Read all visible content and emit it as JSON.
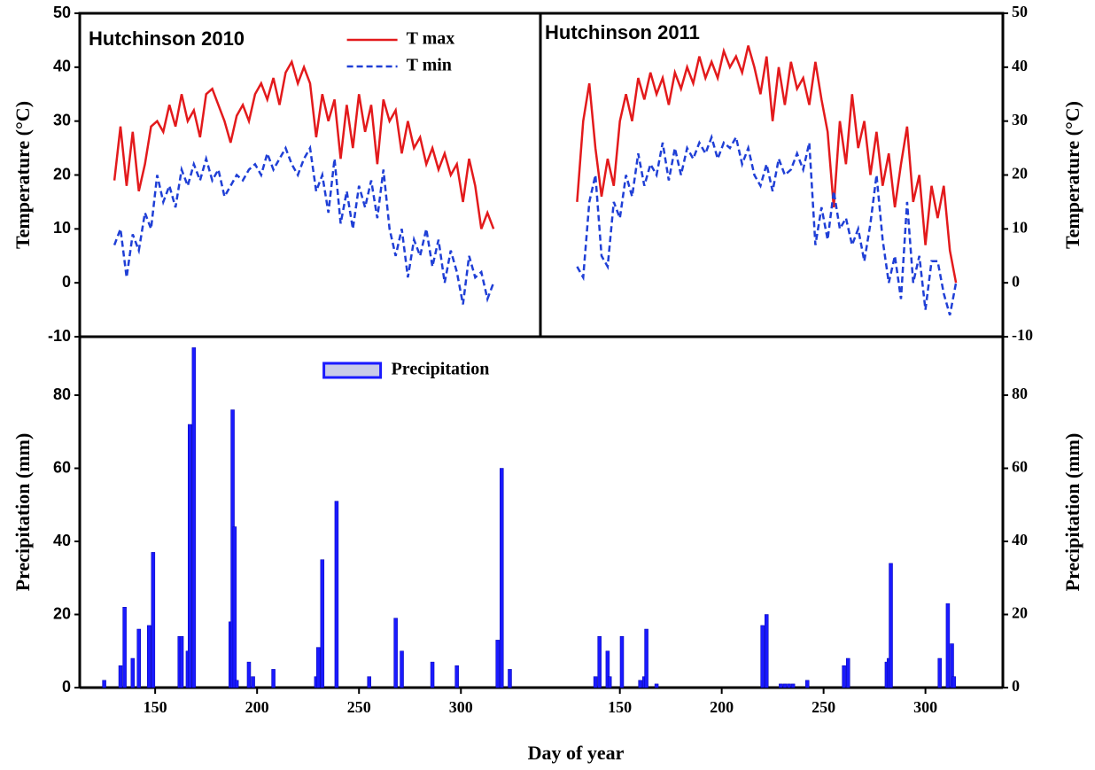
{
  "chart_data": [
    {
      "type": "line",
      "title": "Hutchinson 2010",
      "ylabel": "Temperature (°C)",
      "y_axis_side": "left",
      "xlim": [
        113,
        339
      ],
      "ylim": [
        -10,
        50
      ],
      "yticks": [
        -10,
        0,
        10,
        20,
        30,
        40,
        50
      ],
      "legend": "upper center",
      "x": [
        130,
        133,
        136,
        139,
        142,
        145,
        148,
        151,
        154,
        157,
        160,
        163,
        166,
        169,
        172,
        175,
        178,
        181,
        184,
        187,
        190,
        193,
        196,
        199,
        202,
        205,
        208,
        211,
        214,
        217,
        220,
        223,
        226,
        229,
        232,
        235,
        238,
        241,
        244,
        247,
        250,
        253,
        256,
        259,
        262,
        265,
        268,
        271,
        274,
        277,
        280,
        283,
        286,
        289,
        292,
        295,
        298,
        301,
        304,
        307,
        310,
        313,
        316
      ],
      "series": [
        {
          "name": "T max",
          "color": "#e31a1c",
          "style": "solid",
          "values": [
            19,
            29,
            18,
            28,
            17,
            22,
            29,
            30,
            28,
            33,
            29,
            35,
            30,
            32,
            27,
            35,
            36,
            33,
            30,
            26,
            31,
            33,
            30,
            35,
            37,
            34,
            38,
            33,
            39,
            41,
            37,
            40,
            37,
            27,
            35,
            30,
            34,
            23,
            33,
            25,
            35,
            28,
            33,
            22,
            34,
            30,
            32,
            24,
            30,
            25,
            27,
            22,
            25,
            21,
            24,
            20,
            22,
            15,
            23,
            18,
            10,
            13,
            10
          ]
        },
        {
          "name": "T min",
          "color": "#1f3fd6",
          "style": "dashed",
          "values": [
            7,
            10,
            1,
            9,
            6,
            13,
            10,
            20,
            15,
            18,
            14,
            21,
            18,
            22,
            19,
            23,
            19,
            21,
            16,
            18,
            20,
            19,
            21,
            22,
            20,
            24,
            21,
            23,
            25,
            22,
            20,
            23,
            25,
            17,
            20,
            13,
            23,
            11,
            17,
            10,
            18,
            14,
            19,
            12,
            21,
            10,
            5,
            10,
            1,
            8,
            5,
            10,
            3,
            8,
            0,
            6,
            2,
            -4,
            5,
            1,
            2,
            -3,
            0
          ]
        }
      ]
    },
    {
      "type": "line",
      "title": "Hutchinson 2011",
      "ylabel": "Temperature (°C)",
      "y_axis_side": "right",
      "xlim": [
        111,
        338
      ],
      "ylim": [
        -10,
        50
      ],
      "yticks": [
        -10,
        0,
        10,
        20,
        30,
        40,
        50
      ],
      "x": [
        129,
        132,
        135,
        138,
        141,
        144,
        147,
        150,
        153,
        156,
        159,
        162,
        165,
        168,
        171,
        174,
        177,
        180,
        183,
        186,
        189,
        192,
        195,
        198,
        201,
        204,
        207,
        210,
        213,
        216,
        219,
        222,
        225,
        228,
        231,
        234,
        237,
        240,
        243,
        246,
        249,
        252,
        255,
        258,
        261,
        264,
        267,
        270,
        273,
        276,
        279,
        282,
        285,
        288,
        291,
        294,
        297,
        300,
        303,
        306,
        309,
        312,
        315
      ],
      "series": [
        {
          "color": "#e31a1c",
          "style": "solid",
          "values": [
            15,
            30,
            37,
            25,
            16,
            23,
            18,
            30,
            35,
            30,
            38,
            34,
            39,
            35,
            38,
            33,
            39,
            36,
            40,
            37,
            42,
            38,
            41,
            38,
            43,
            40,
            42,
            39,
            44,
            40,
            35,
            42,
            30,
            40,
            33,
            41,
            36,
            38,
            33,
            41,
            34,
            28,
            14,
            30,
            22,
            35,
            25,
            30,
            20,
            28,
            18,
            24,
            14,
            22,
            29,
            15,
            20,
            7,
            18,
            12,
            18,
            6,
            0
          ]
        },
        {
          "color": "#1f3fd6",
          "style": "dashed",
          "values": [
            3,
            1,
            15,
            20,
            5,
            3,
            15,
            12,
            20,
            16,
            24,
            18,
            22,
            20,
            26,
            19,
            25,
            20,
            25,
            23,
            26,
            24,
            27,
            23,
            26,
            25,
            27,
            22,
            25,
            20,
            18,
            22,
            17,
            23,
            20,
            21,
            24,
            21,
            26,
            7,
            14,
            8,
            17,
            10,
            12,
            7,
            10,
            4,
            11,
            20,
            8,
            0,
            5,
            -3,
            15,
            0,
            5,
            -5,
            4,
            4,
            -2,
            -6,
            0
          ]
        }
      ]
    },
    {
      "type": "bar",
      "ylabel": "Precipitation (mm)",
      "xlabel": "Day of  year",
      "y_axis_side": "left",
      "xlim": [
        113,
        339
      ],
      "ylim": [
        0,
        96
      ],
      "yticks": [
        0,
        20,
        40,
        60,
        80
      ],
      "xticks": [
        150,
        200,
        250,
        300
      ],
      "legend": "upper right",
      "series": [
        {
          "name": "Precipitation",
          "color": "#1a1aff",
          "x": [
            125,
            133,
            135,
            139,
            142,
            147,
            149,
            162,
            163,
            166,
            167,
            169,
            187,
            188,
            189,
            190,
            196,
            198,
            208,
            229,
            230,
            232,
            239,
            255,
            268,
            271,
            286,
            298,
            318,
            320,
            324
          ],
          "values": [
            2,
            6,
            22,
            8,
            16,
            17,
            37,
            14,
            14,
            10,
            72,
            93,
            18,
            76,
            44,
            2,
            7,
            3,
            5,
            3,
            11,
            35,
            51,
            3,
            19,
            10,
            7,
            6,
            13,
            60,
            5
          ]
        }
      ]
    },
    {
      "type": "bar",
      "ylabel": "Precipitation (mm)",
      "y_axis_side": "right",
      "xlim": [
        111,
        338
      ],
      "ylim": [
        0,
        96
      ],
      "yticks": [
        0,
        20,
        40,
        60,
        80
      ],
      "xticks": [
        150,
        200,
        250,
        300
      ],
      "series": [
        {
          "color": "#1a1aff",
          "x": [
            138,
            140,
            144,
            145,
            151,
            160,
            162,
            163,
            168,
            220,
            222,
            229,
            231,
            233,
            235,
            242,
            260,
            262,
            281,
            282,
            283,
            307,
            311,
            313,
            314
          ],
          "values": [
            3,
            14,
            10,
            3,
            14,
            2,
            3,
            16,
            1,
            17,
            20,
            1,
            1,
            1,
            1,
            2,
            6,
            8,
            7,
            8,
            34,
            8,
            23,
            12,
            3
          ]
        }
      ]
    }
  ]
}
